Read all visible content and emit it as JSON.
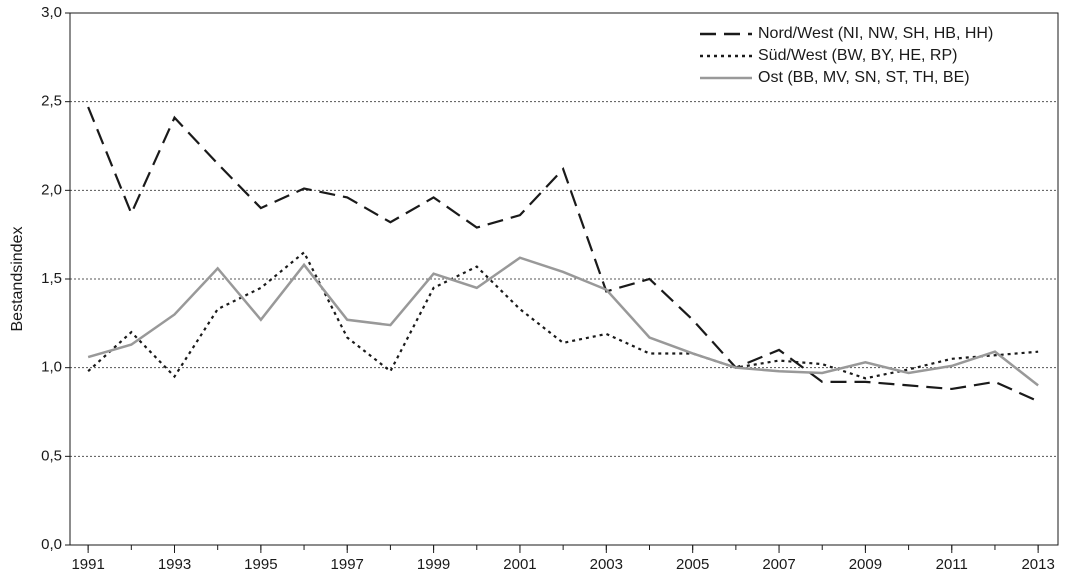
{
  "chart_data": {
    "type": "line",
    "y_label": "Bestandsindex",
    "x": [
      1991,
      1992,
      1993,
      1994,
      1995,
      1996,
      1997,
      1998,
      1999,
      2000,
      2001,
      2002,
      2003,
      2004,
      2005,
      2006,
      2007,
      2008,
      2009,
      2010,
      2011,
      2012,
      2013
    ],
    "series": [
      {
        "name": "Nord/West (NI, NW, SH, HB, HH)",
        "color": "#1a1a1a",
        "dash": "dashed",
        "values": [
          2.47,
          1.87,
          2.41,
          2.15,
          1.9,
          2.01,
          1.96,
          1.82,
          1.96,
          1.79,
          1.86,
          2.12,
          1.43,
          1.5,
          1.27,
          1.0,
          1.1,
          0.92,
          0.92,
          0.9,
          0.88,
          0.92,
          0.81
        ]
      },
      {
        "name": "Süd/West (BW, BY, HE, RP)",
        "color": "#1a1a1a",
        "dash": "dotted",
        "values": [
          0.98,
          1.2,
          0.95,
          1.33,
          1.45,
          1.65,
          1.17,
          0.98,
          1.45,
          1.57,
          1.33,
          1.14,
          1.19,
          1.08,
          1.08,
          1.0,
          1.04,
          1.02,
          0.94,
          0.99,
          1.05,
          1.07,
          1.09
        ]
      },
      {
        "name": "Ost (BB, MV, SN, ST, TH, BE)",
        "color": "#999999",
        "dash": "solid",
        "values": [
          1.06,
          1.13,
          1.3,
          1.56,
          1.27,
          1.58,
          1.27,
          1.24,
          1.53,
          1.45,
          1.62,
          1.54,
          1.44,
          1.17,
          1.08,
          1.0,
          0.98,
          0.97,
          1.03,
          0.97,
          1.01,
          1.09,
          0.9
        ]
      }
    ],
    "xlim": [
      1990.58,
      2013.46
    ],
    "xticks": [
      1991,
      1993,
      1995,
      1997,
      1999,
      2001,
      2003,
      2005,
      2007,
      2009,
      2011,
      2013
    ],
    "ylim": [
      0,
      3
    ],
    "yticks": [
      {
        "value": 0,
        "label": "0,0"
      },
      {
        "value": 0.5,
        "label": "0,5"
      },
      {
        "value": 1,
        "label": "1,0"
      },
      {
        "value": 1.5,
        "label": "1,5"
      },
      {
        "value": 2,
        "label": "2,0"
      },
      {
        "value": 2.5,
        "label": "2,5"
      },
      {
        "value": 3,
        "label": "3,0"
      }
    ],
    "grid": true,
    "legend": "top-right"
  }
}
